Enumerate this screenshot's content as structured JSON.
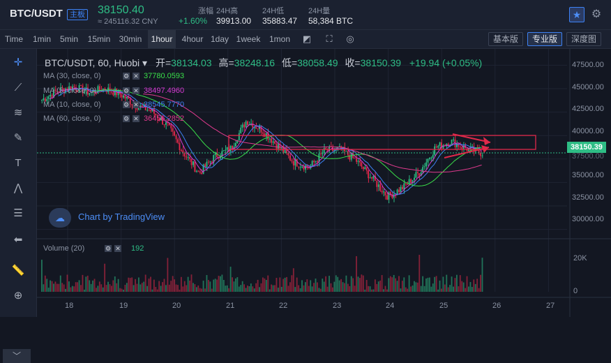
{
  "header": {
    "pair": "BTC/USDT",
    "badge": "主板",
    "last_price": "38150.40",
    "cny": "≈ 245116.32 CNY",
    "stats": [
      {
        "label": "涨幅",
        "value": "+1.60%",
        "color": "#2ebd85"
      },
      {
        "label": "24H高",
        "value": "39913.00",
        "color": "#e6e8ec"
      },
      {
        "label": "24H低",
        "value": "35883.47",
        "color": "#e6e8ec"
      },
      {
        "label": "24H量",
        "value": "58,384 BTC",
        "color": "#e6e8ec"
      }
    ]
  },
  "toolbar": {
    "timeframes": [
      "Time",
      "1min",
      "5min",
      "15min",
      "30min",
      "1hour",
      "4hour",
      "1day",
      "1week",
      "1mon"
    ],
    "active_timeframe": "1hour",
    "views": [
      "基本版",
      "专业版",
      "深度图"
    ],
    "active_view": "专业版"
  },
  "legend": {
    "symbol": "BTC/USDT, 60, Huobi",
    "open_label": "开=",
    "open": "38134.03",
    "high_label": "高=",
    "high": "38248.16",
    "low_label": "低=",
    "low": "38058.49",
    "close_label": "收=",
    "close": "38150.39",
    "change": "+19.94 (+0.05%)"
  },
  "moving_averages": [
    {
      "label": "MA (30, close, 0)",
      "value": "37780.0593",
      "color": "#3adf4a"
    },
    {
      "label": "MA (5, close, 0)",
      "value": "38497.4960",
      "color": "#d63ad3"
    },
    {
      "label": "MA (10, close, 0)",
      "value": "38545.7770",
      "color": "#3d82f5"
    },
    {
      "label": "MA (60, close, 0)",
      "value": "36456.2852",
      "color": "#e03a8e"
    }
  ],
  "watermark": "Chart by TradingView",
  "volume": {
    "label": "Volume (20)",
    "value": "192"
  },
  "price_tag": "38150.39",
  "chart_data": {
    "type": "candlestick",
    "price_axis": [
      "47500.00",
      "45000.00",
      "42500.00",
      "40000.00",
      "37500.00",
      "35000.00",
      "32500.00",
      "30000.00"
    ],
    "volume_axis": [
      "20K",
      "0"
    ],
    "x_ticks": [
      "18",
      "19",
      "20",
      "21",
      "22",
      "23",
      "24",
      "25",
      "26",
      "27"
    ],
    "approx_closes": [
      43800,
      44800,
      45200,
      44600,
      45000,
      44400,
      43200,
      42600,
      41000,
      38200,
      36000,
      37800,
      38600,
      41600,
      40600,
      38900,
      37200,
      36600,
      38400,
      38500,
      37300,
      35400,
      33500,
      34500,
      36100,
      38700,
      39400,
      38600,
      38150
    ],
    "colors": {
      "up": "#2ebd85",
      "down": "#e0294a"
    }
  }
}
